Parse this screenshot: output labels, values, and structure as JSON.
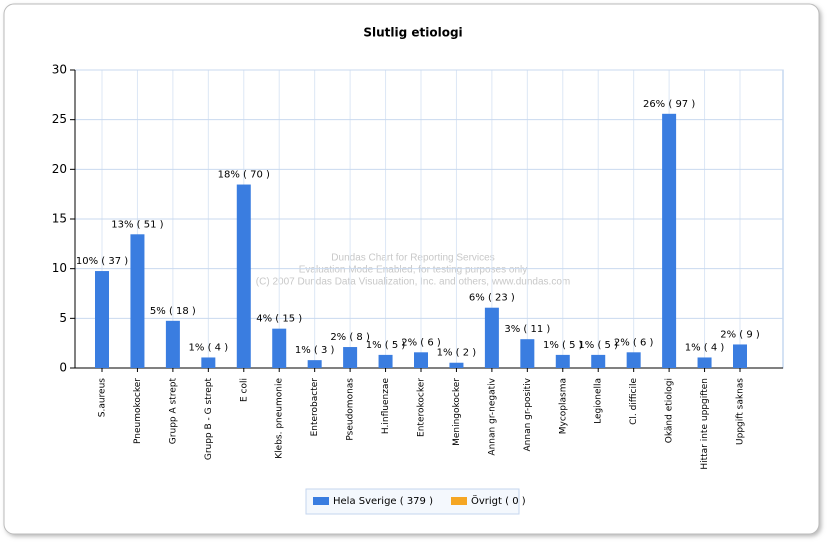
{
  "chart_data": {
    "type": "bar",
    "title": "Slutlig etiologi",
    "categories": [
      "S.aureus",
      "Pneumokocker",
      "Grupp A strept",
      "Grupp B - G strept",
      "E coli",
      "Klebs. pneumonie",
      "Enterobacter",
      "Pseudomonas",
      "H.influenzae",
      "Enterokocker",
      "Meningokocker",
      "Annan gr-negativ",
      "Annan gr-positiv",
      "Mycoplasma",
      "Legionella",
      "Cl. difficile",
      "Okänd etiologi",
      "Hittar inte uppgiften",
      "Uppgift saknas"
    ],
    "series": [
      {
        "name": "Hela Sverige  ( 379 )",
        "color": "#3a7de0",
        "values": [
          9.76,
          13.46,
          4.75,
          1.06,
          18.47,
          3.96,
          0.79,
          2.11,
          1.32,
          1.58,
          0.53,
          6.07,
          2.9,
          1.32,
          1.32,
          1.58,
          25.59,
          1.06,
          2.37
        ],
        "value_labels": [
          "10% ( 37 )",
          "13% ( 51 )",
          "5% ( 18 )",
          "1% ( 4 )",
          "18% ( 70 )",
          "4% ( 15 )",
          "1% ( 3 )",
          "2% ( 8 )",
          "1% ( 5 )",
          "2% ( 6 )",
          "1% ( 2 )",
          "6% ( 23 )",
          "3% ( 11 )",
          "1% ( 5 )",
          "1% ( 5 )",
          "2% ( 6 )",
          "26% ( 97 )",
          "1% ( 4 )",
          "2% ( 9 )"
        ]
      },
      {
        "name": "Övrigt  ( 0 )",
        "color": "#f5a623"
      }
    ],
    "ylim": [
      0,
      30
    ],
    "yticks": [
      0,
      5,
      10,
      15,
      20,
      25,
      30
    ],
    "grid": true,
    "annotations": [
      "Dundas Chart for Reporting Services",
      "Evaluation Mode Enabled, for testing purposes only",
      "(C) 2007 Dundas Data Visualization, Inc. and others, www.dundas.com"
    ]
  }
}
